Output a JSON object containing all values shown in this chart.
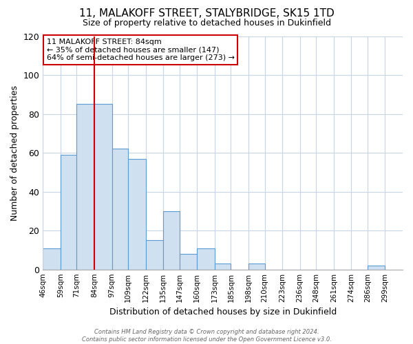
{
  "title": "11, MALAKOFF STREET, STALYBRIDGE, SK15 1TD",
  "subtitle": "Size of property relative to detached houses in Dukinfield",
  "xlabel": "Distribution of detached houses by size in Dukinfield",
  "ylabel": "Number of detached properties",
  "bin_labels": [
    "46sqm",
    "59sqm",
    "71sqm",
    "84sqm",
    "97sqm",
    "109sqm",
    "122sqm",
    "135sqm",
    "147sqm",
    "160sqm",
    "173sqm",
    "185sqm",
    "198sqm",
    "210sqm",
    "223sqm",
    "236sqm",
    "248sqm",
    "261sqm",
    "274sqm",
    "286sqm",
    "299sqm"
  ],
  "bar_values": [
    11,
    59,
    85,
    85,
    62,
    57,
    15,
    30,
    8,
    11,
    3,
    0,
    3,
    0,
    0,
    0,
    0,
    0,
    0,
    2
  ],
  "bar_color": "#cfe0f0",
  "bar_edge_color": "#5b9bd5",
  "highlight_line_color": "#cc0000",
  "ylim": [
    0,
    120
  ],
  "yticks": [
    0,
    20,
    40,
    60,
    80,
    100,
    120
  ],
  "annotation_title": "11 MALAKOFF STREET: 84sqm",
  "annotation_line1": "← 35% of detached houses are smaller (147)",
  "annotation_line2": "64% of semi-detached houses are larger (273) →",
  "annotation_box_color": "#cc0000",
  "footer_line1": "Contains HM Land Registry data © Crown copyright and database right 2024.",
  "footer_line2": "Contains public sector information licensed under the Open Government Licence v3.0.",
  "background_color": "#ffffff",
  "grid_color": "#c8d4e8"
}
